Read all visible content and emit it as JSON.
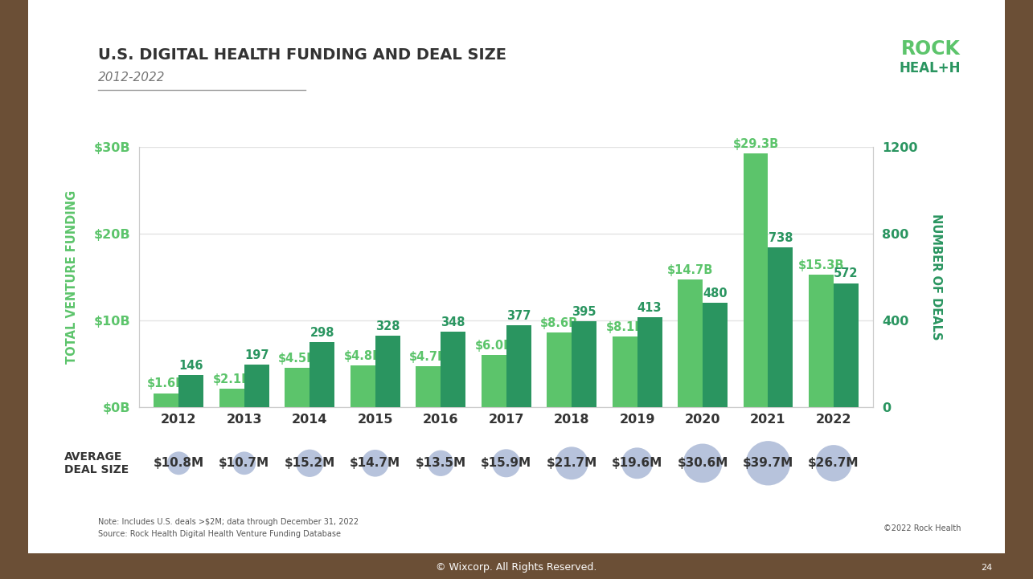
{
  "chart_data": {
    "type": "bar",
    "title": "U.S. DIGITAL HEALTH FUNDING AND DEAL SIZE",
    "subtitle": "2012-2022",
    "ylabel": "TOTAL VENTURE FUNDING",
    "y2label": "NUMBER OF DEALS",
    "categories": [
      "2012",
      "2013",
      "2014",
      "2015",
      "2016",
      "2017",
      "2018",
      "2019",
      "2020",
      "2021",
      "2022"
    ],
    "series": [
      {
        "color": "#5cc46b",
        "axis": "y",
        "values": [
          1.6,
          2.1,
          4.5,
          4.8,
          4.7,
          6.0,
          8.6,
          8.1,
          14.7,
          29.3,
          15.3
        ],
        "value_labels": [
          "$1.6B",
          "$2.1B",
          "$4.5B",
          "$4.8B",
          "$4.7B",
          "$6.0B",
          "$8.6B",
          "$8.1B",
          "$14.7B",
          "$29.3B",
          "$15.3B"
        ]
      },
      {
        "color": "#2a9560",
        "axis": "y2",
        "values": [
          146,
          197,
          298,
          328,
          348,
          377,
          395,
          413,
          480,
          738,
          572
        ]
      }
    ],
    "ylim": [
      0,
      30
    ],
    "yticks": [
      {
        "value": 0,
        "label": "$0B"
      },
      {
        "value": 10,
        "label": "$10B"
      },
      {
        "value": 20,
        "label": "$20B"
      },
      {
        "value": 30,
        "label": "$30B"
      }
    ],
    "y2lim": [
      0,
      1200
    ],
    "y2ticks": [
      0,
      400,
      800,
      1200
    ],
    "grid": true,
    "data_labels": true,
    "average_deal_size": {
      "label": "AVERAGE\nDEAL SIZE",
      "color": "#b7c3dc",
      "values": [
        10.8,
        10.7,
        15.2,
        14.7,
        13.5,
        15.9,
        21.7,
        19.6,
        30.6,
        39.7,
        26.7
      ],
      "value_labels": [
        "$10.8M",
        "$10.7M",
        "$15.2M",
        "$14.7M",
        "$13.5M",
        "$15.9M",
        "$21.7M",
        "$19.6M",
        "$30.6M",
        "$39.7M",
        "$26.7M"
      ]
    }
  },
  "logo": [
    "ROCK",
    "HEAL+H"
  ],
  "notes": [
    "Note: Includes U.S. deals >$2M; data through December 31, 2022",
    "Source: Rock Health Digital Health Venture Funding Database"
  ],
  "copyright": "©2022 Rock Health",
  "footer": "© Wixcorp. All Rights Reserved.",
  "page": "24"
}
